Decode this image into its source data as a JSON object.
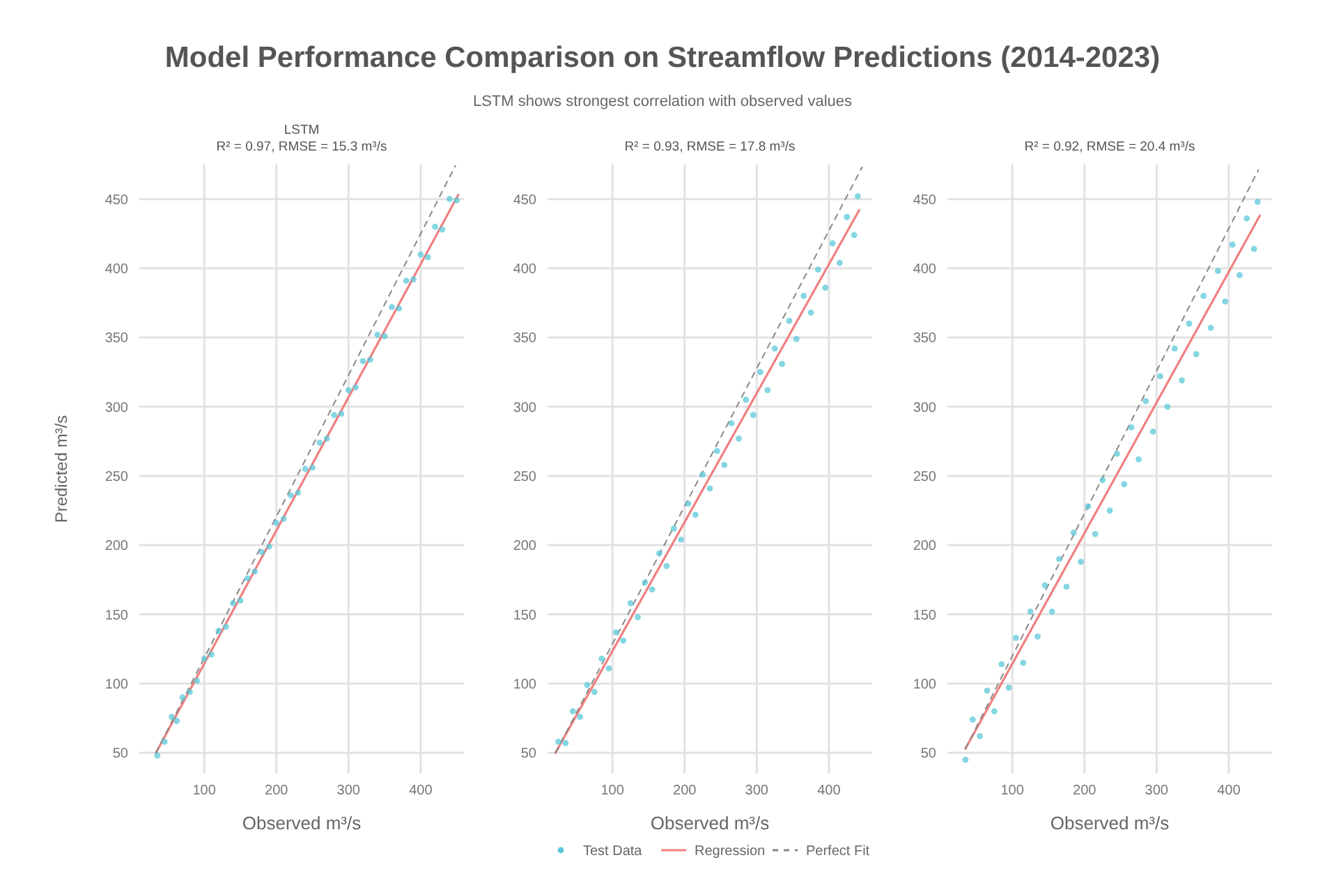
{
  "chart_data": [
    {
      "type": "scatter",
      "annotations": [
        "LSTM",
        "R² = 0.97, RMSE = 15.3 m³/s"
      ],
      "xlabel": "Observed m³/s",
      "ylabel": "Predicted m³/s",
      "xlim": [
        10,
        460
      ],
      "ylim": [
        35,
        475
      ],
      "xticks": [
        100,
        200,
        300,
        400
      ],
      "yticks": [
        50,
        100,
        150,
        200,
        250,
        300,
        350,
        400,
        450
      ],
      "grid": true,
      "legend": false,
      "series": [
        {
          "color": "#5bc8d8",
          "x": [
            35,
            45,
            55,
            62,
            70,
            80,
            90,
            100,
            110,
            120,
            130,
            140,
            150,
            160,
            170,
            180,
            190,
            200,
            210,
            220,
            230,
            240,
            250,
            260,
            270,
            280,
            290,
            300,
            310,
            320,
            330,
            340,
            350,
            360,
            370,
            380,
            390,
            400,
            410,
            420,
            430,
            440,
            450
          ],
          "values": [
            48,
            58,
            76,
            73,
            90,
            94,
            102,
            118,
            121,
            138,
            141,
            158,
            160,
            176,
            181,
            195,
            199,
            216,
            219,
            236,
            238,
            255,
            256,
            274,
            277,
            294,
            295,
            312,
            314,
            333,
            334,
            352,
            351,
            372,
            371,
            391,
            392,
            410,
            408,
            430,
            428,
            450,
            449
          ]
        },
        {
          "type": "line",
          "color": "#f08080",
          "x": [
            33,
            452
          ],
          "values": [
            50,
            453
          ]
        },
        {
          "type": "line",
          "color": "#888888",
          "line_style": "dashed",
          "x": [
            33,
            448
          ],
          "values": [
            50,
            474
          ]
        }
      ]
    },
    {
      "type": "scatter",
      "title": "Model Performance Comparison on Streamflow Predictions (2014-2023)",
      "subtitle": "LSTM shows strongest correlation with observed values",
      "annotations": [
        "R² = 0.93, RMSE = 17.8 m³/s"
      ],
      "xlabel": "Observed m³/s",
      "xlim": [
        10,
        460
      ],
      "ylim": [
        35,
        475
      ],
      "xticks": [
        100,
        200,
        300,
        400
      ],
      "yticks": [
        50,
        100,
        150,
        200,
        250,
        300,
        350,
        400,
        450
      ],
      "grid": true,
      "legend": "bottom",
      "series": [
        {
          "name": "Test Data",
          "color": "#5bc8d8",
          "x": [
            25,
            35,
            45,
            55,
            65,
            75,
            85,
            95,
            105,
            115,
            125,
            135,
            145,
            155,
            165,
            175,
            185,
            195,
            205,
            215,
            225,
            235,
            245,
            255,
            265,
            275,
            285,
            295,
            305,
            315,
            325,
            335,
            345,
            355,
            365,
            375,
            385,
            395,
            405,
            415,
            425,
            435,
            440
          ],
          "values": [
            58,
            57,
            80,
            76,
            99,
            94,
            118,
            111,
            137,
            131,
            158,
            148,
            173,
            168,
            194,
            185,
            212,
            204,
            230,
            222,
            251,
            241,
            268,
            258,
            288,
            277,
            305,
            294,
            325,
            312,
            342,
            331,
            362,
            349,
            380,
            368,
            399,
            386,
            418,
            404,
            437,
            424,
            452
          ]
        },
        {
          "name": "Regression",
          "type": "line",
          "color": "#f08080",
          "x": [
            21,
            442
          ],
          "values": [
            50,
            442
          ]
        },
        {
          "name": "Perfect Fit",
          "type": "line",
          "color": "#888888",
          "line_style": "dashed",
          "x": [
            21,
            446
          ],
          "values": [
            50,
            473
          ]
        }
      ]
    },
    {
      "type": "scatter",
      "annotations": [
        "R² = 0.92, RMSE = 20.4 m³/s"
      ],
      "xlabel": "Observed m³/s",
      "xlim": [
        10,
        460
      ],
      "ylim": [
        35,
        475
      ],
      "xticks": [
        100,
        200,
        300,
        400
      ],
      "yticks": [
        50,
        100,
        150,
        200,
        250,
        300,
        350,
        400,
        450
      ],
      "grid": true,
      "legend": false,
      "series": [
        {
          "color": "#5bc8d8",
          "x": [
            35,
            45,
            55,
            65,
            75,
            85,
            95,
            105,
            115,
            125,
            135,
            145,
            155,
            165,
            175,
            185,
            195,
            205,
            215,
            225,
            235,
            245,
            255,
            265,
            275,
            285,
            295,
            305,
            315,
            325,
            335,
            345,
            355,
            365,
            375,
            385,
            395,
            405,
            415,
            425,
            435,
            440
          ],
          "values": [
            45,
            74,
            62,
            95,
            80,
            114,
            97,
            133,
            115,
            152,
            134,
            171,
            152,
            190,
            170,
            209,
            188,
            228,
            208,
            247,
            225,
            266,
            244,
            285,
            262,
            304,
            282,
            322,
            300,
            342,
            319,
            360,
            338,
            380,
            357,
            398,
            376,
            417,
            395,
            436,
            414,
            448
          ]
        },
        {
          "type": "line",
          "color": "#f08080",
          "x": [
            35,
            443
          ],
          "values": [
            53,
            438
          ]
        },
        {
          "type": "line",
          "color": "#888888",
          "line_style": "dashed",
          "x": [
            35,
            441
          ],
          "values": [
            53,
            471
          ]
        }
      ]
    }
  ]
}
